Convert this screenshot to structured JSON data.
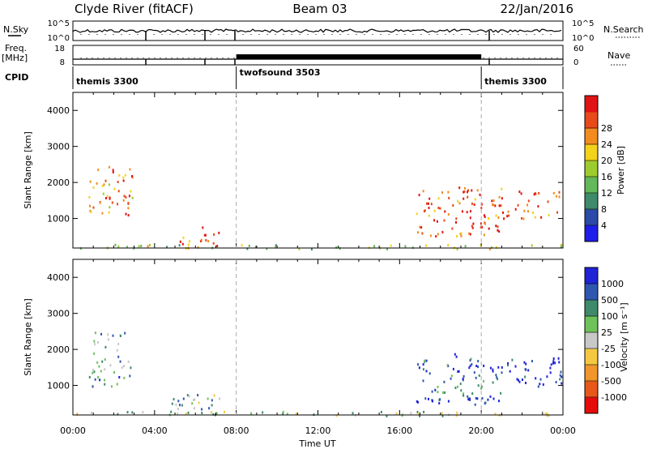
{
  "header": {
    "station": "Clyde River (fitACF)",
    "beam": "Beam 03",
    "date": "22/Jan/2016"
  },
  "aux_panels": {
    "nsky_label": "N.Sky",
    "nsearch_label": "N.Search",
    "freq_label_1": "Freq.",
    "freq_label_2": "[MHz]",
    "nave_label": "Nave",
    "cpid_label": "CPID",
    "nsky_ticks": [
      "10^5",
      "10^0"
    ],
    "nsearch_ticks": [
      "10^5",
      "10^0"
    ],
    "freq_ticks": [
      "18",
      "8"
    ],
    "nave_ticks": [
      "60",
      "0"
    ]
  },
  "cpid_segments": [
    {
      "name": "themis 3300",
      "start_hr": 0,
      "end_hr": 8
    },
    {
      "name": "twofsound 3503",
      "start_hr": 8,
      "end_hr": 20
    },
    {
      "name": "themis 3300",
      "start_hr": 20,
      "end_hr": 24
    }
  ],
  "colors": {
    "power": [
      "#1f1ee8",
      "#2e4aa8",
      "#3f8a6b",
      "#62b85a",
      "#9ccc2e",
      "#f2d21a",
      "#f28c1e",
      "#e84a1a",
      "#e01414"
    ],
    "velocity": [
      "#e60c0c",
      "#e8581a",
      "#f0962a",
      "#f5c842",
      "#c8c8c8",
      "#6fc25a",
      "#3f8a6b",
      "#3057b0",
      "#1f24d6"
    ],
    "ground": "#a6a6a6"
  },
  "chart_data": [
    {
      "type": "heatmap",
      "name": "power",
      "xlabel": "Time UT",
      "ylabel": "Slant Range [km]",
      "xlim": [
        0,
        24
      ],
      "ylim": [
        180,
        4500
      ],
      "x_ticks": [
        "00:00",
        "04:00",
        "08:00",
        "12:00",
        "16:00",
        "20:00",
        "00:00"
      ],
      "y_ticks": [
        1000,
        2000,
        3000,
        4000
      ],
      "colorbar_label": "Power [dB]",
      "colorbar_ticks": [
        "4",
        "8",
        "12",
        "16",
        "20",
        "24",
        "28"
      ],
      "regions": [
        {
          "t0": 0.7,
          "t1": 2.9,
          "r0": 1000,
          "r1": 2500,
          "level": 0.75
        },
        {
          "t0": 4.6,
          "t1": 6.3,
          "r0": 200,
          "r1": 600,
          "level": 0.8
        },
        {
          "t0": 6.3,
          "t1": 7.2,
          "r0": 200,
          "r1": 850,
          "level": 0.9
        },
        {
          "t0": 16.8,
          "t1": 21.0,
          "r0": 500,
          "r1": 1900,
          "level": 0.85
        },
        {
          "t0": 21.0,
          "t1": 23.9,
          "r0": 1000,
          "r1": 1800,
          "level": 0.8
        },
        {
          "t0": 0.0,
          "t1": 24.0,
          "r0": 180,
          "r1": 300,
          "level": 0.45
        }
      ]
    },
    {
      "type": "heatmap",
      "name": "velocity",
      "xlabel": "Time UT",
      "ylabel": "Slant Range [km]",
      "xlim": [
        0,
        24
      ],
      "ylim": [
        180,
        4500
      ],
      "x_ticks": [
        "00:00",
        "04:00",
        "08:00",
        "12:00",
        "16:00",
        "20:00",
        "00:00"
      ],
      "y_ticks": [
        1000,
        2000,
        3000,
        4000
      ],
      "colorbar_label": "Velocity [m s⁻¹]",
      "colorbar_ticks": [
        "-1000",
        "-500",
        "-100",
        "-25",
        "25",
        "100",
        "500",
        "1000"
      ],
      "regions": [
        {
          "t0": 0.7,
          "t1": 2.9,
          "r0": 1000,
          "r1": 2500,
          "level": 0.68
        },
        {
          "t0": 4.6,
          "t1": 7.2,
          "r0": 200,
          "r1": 800,
          "level": 0.65
        },
        {
          "t0": 16.8,
          "t1": 21.0,
          "r0": 500,
          "r1": 1900,
          "level": 0.85
        },
        {
          "t0": 21.0,
          "t1": 23.9,
          "r0": 1000,
          "r1": 1800,
          "level": 0.95
        },
        {
          "t0": 0.0,
          "t1": 24.0,
          "r0": 180,
          "r1": 300,
          "level": 0.55
        }
      ]
    }
  ]
}
